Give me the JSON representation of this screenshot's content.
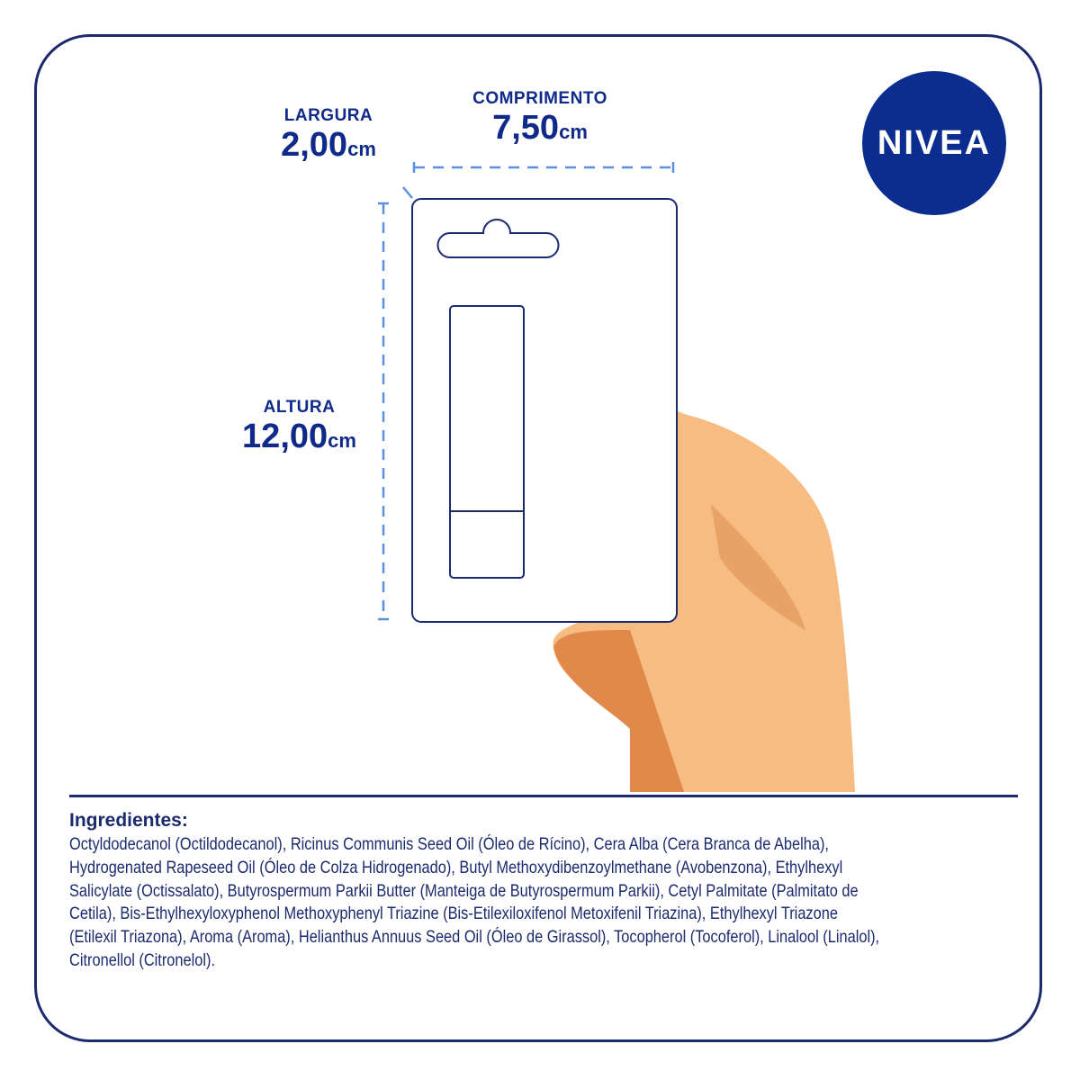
{
  "brand": "NIVEA",
  "dimensions": {
    "width": {
      "label": "LARGURA",
      "value": "2,00",
      "unit": "cm"
    },
    "length": {
      "label": "COMPRIMENTO",
      "value": "7,50",
      "unit": "cm"
    },
    "height": {
      "label": "ALTURA",
      "value": "12,00",
      "unit": "cm"
    }
  },
  "colors": {
    "navy": "#1b2a6e",
    "brand_blue": "#0a2d8f",
    "dash": "#5b8fe0",
    "skin": "#f6bc82"
  },
  "ingredients": {
    "title": "Ingredientes:",
    "lines": [
      "Octyldodecanol (Octildodecanol), Ricinus Communis Seed Oil (Óleo de Rícino), Cera Alba (Cera Branca de Abelha),",
      "Hydrogenated Rapeseed Oil (Óleo de Colza Hidrogenado), Butyl Methoxydibenzoylmethane (Avobenzona), Ethylhexyl",
      "Salicylate (Octissalato), Butyrospermum Parkii Butter (Manteiga de Butyrospermum Parkii), Cetyl Palmitate (Palmitato de",
      "Cetila), Bis-Ethylhexyloxyphenol Methoxyphenyl Triazine (Bis-Etilexiloxifenol Metoxifenil Triazina), Ethylhexyl Triazone",
      "(Etilexil Triazona), Aroma (Aroma), Helianthus Annuus Seed Oil (Óleo de Girassol), Tocopherol (Tocoferol), Linalool (Linalol),",
      "Citronellol (Citronelol)."
    ]
  }
}
